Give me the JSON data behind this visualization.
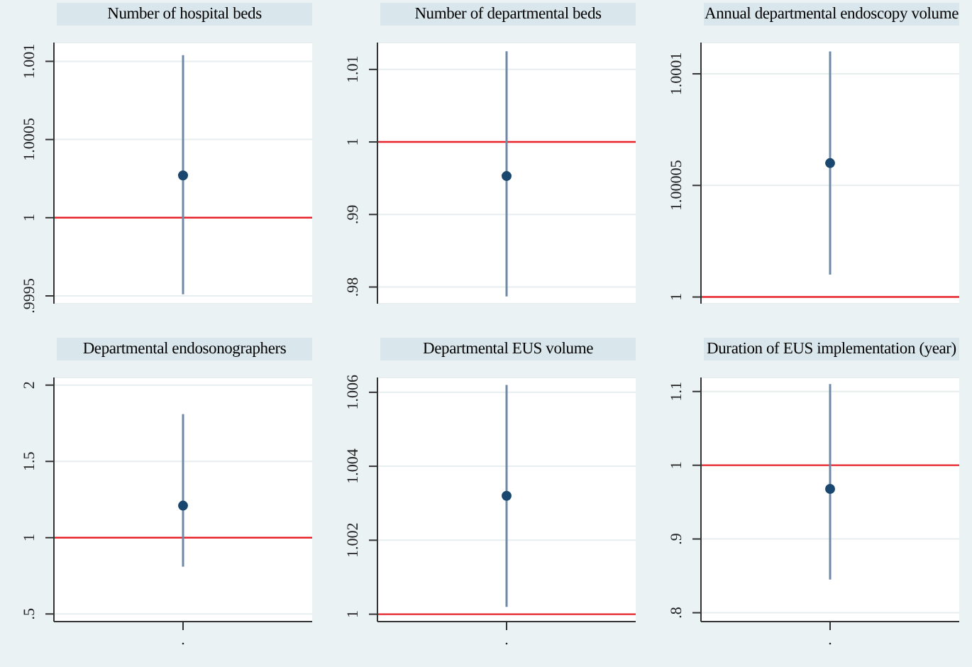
{
  "chart_data": [
    {
      "type": "scatter",
      "title": "Number of hospital beds",
      "categories": [
        null
      ],
      "tick_labels": "y",
      "series": [
        {
          "color": "#1a476f",
          "values": [
            1.00027
          ],
          "errors": [
            [
              0.99951,
              1.00104
            ]
          ]
        }
      ],
      "ylim": [
        0.99945,
        1.00112
      ],
      "yticks": [
        {
          "value": 0.9995,
          "label": ".9995"
        },
        1,
        1.0005,
        1.001
      ],
      "grid": "y",
      "marker": "circle",
      "ref_lines": [
        {
          "axis": "y",
          "value": 1,
          "color": "#e8232a"
        }
      ]
    },
    {
      "type": "scatter",
      "title": "Number of departmental beds",
      "categories": [
        null
      ],
      "tick_labels": "y",
      "series": [
        {
          "color": "#1a476f",
          "values": [
            0.9953
          ],
          "errors": [
            [
              0.9787,
              1.0125
            ]
          ]
        }
      ],
      "ylim": [
        0.9777,
        1.0137
      ],
      "yticks": [
        {
          "value": 0.98,
          "label": ".98"
        },
        {
          "value": 0.99,
          "label": ".99"
        },
        1,
        1.01
      ],
      "grid": "y",
      "marker": "circle",
      "ref_lines": [
        {
          "axis": "y",
          "value": 1,
          "color": "#e8232a"
        }
      ]
    },
    {
      "type": "scatter",
      "title": "Annual departmental endoscopy volume",
      "categories": [
        null
      ],
      "tick_labels": "y",
      "series": [
        {
          "color": "#1a476f",
          "values": [
            1.00006
          ],
          "errors": [
            [
              1.00001,
              1.00011
            ]
          ]
        }
      ],
      "ylim": [
        0.999997,
        1.000114
      ],
      "yticks": [
        1,
        1.00005,
        1.0001
      ],
      "grid": "y",
      "marker": "circle",
      "ref_lines": [
        {
          "axis": "y",
          "value": 1,
          "color": "#e8232a"
        }
      ]
    },
    {
      "type": "scatter",
      "title": "Departmental endosonographers",
      "categories": [
        "."
      ],
      "series": [
        {
          "color": "#1a476f",
          "values": [
            1.21
          ],
          "errors": [
            [
              0.81,
              1.81
            ]
          ]
        }
      ],
      "ylim": [
        0.45,
        2.05
      ],
      "yticks": [
        {
          "value": 0.5,
          "label": ".5"
        },
        1,
        1.5,
        2
      ],
      "grid": "y",
      "marker": "circle",
      "ref_lines": [
        {
          "axis": "y",
          "value": 1,
          "color": "#e8232a"
        }
      ]
    },
    {
      "type": "scatter",
      "title": "Departmental  EUS volume",
      "categories": [
        "."
      ],
      "series": [
        {
          "color": "#1a476f",
          "values": [
            1.0032
          ],
          "errors": [
            [
              1.0002,
              1.0062
            ]
          ]
        }
      ],
      "ylim": [
        0.9998,
        1.0064
      ],
      "yticks": [
        1,
        1.002,
        1.004,
        1.006
      ],
      "grid": "y",
      "marker": "circle",
      "ref_lines": [
        {
          "axis": "y",
          "value": 1,
          "color": "#e8232a"
        }
      ]
    },
    {
      "type": "scatter",
      "title": "Duration of EUS implementation (year)",
      "categories": [
        "."
      ],
      "series": [
        {
          "color": "#1a476f",
          "values": [
            0.968
          ],
          "errors": [
            [
              0.845,
              1.11
            ]
          ]
        }
      ],
      "ylim": [
        0.788,
        1.119
      ],
      "yticks": [
        {
          "value": 0.8,
          "label": ".8"
        },
        {
          "value": 0.9,
          "label": ".9"
        },
        1,
        1.1
      ],
      "grid": "y",
      "marker": "circle",
      "ref_lines": [
        {
          "axis": "y",
          "value": 1,
          "color": "#e8232a"
        }
      ]
    }
  ]
}
